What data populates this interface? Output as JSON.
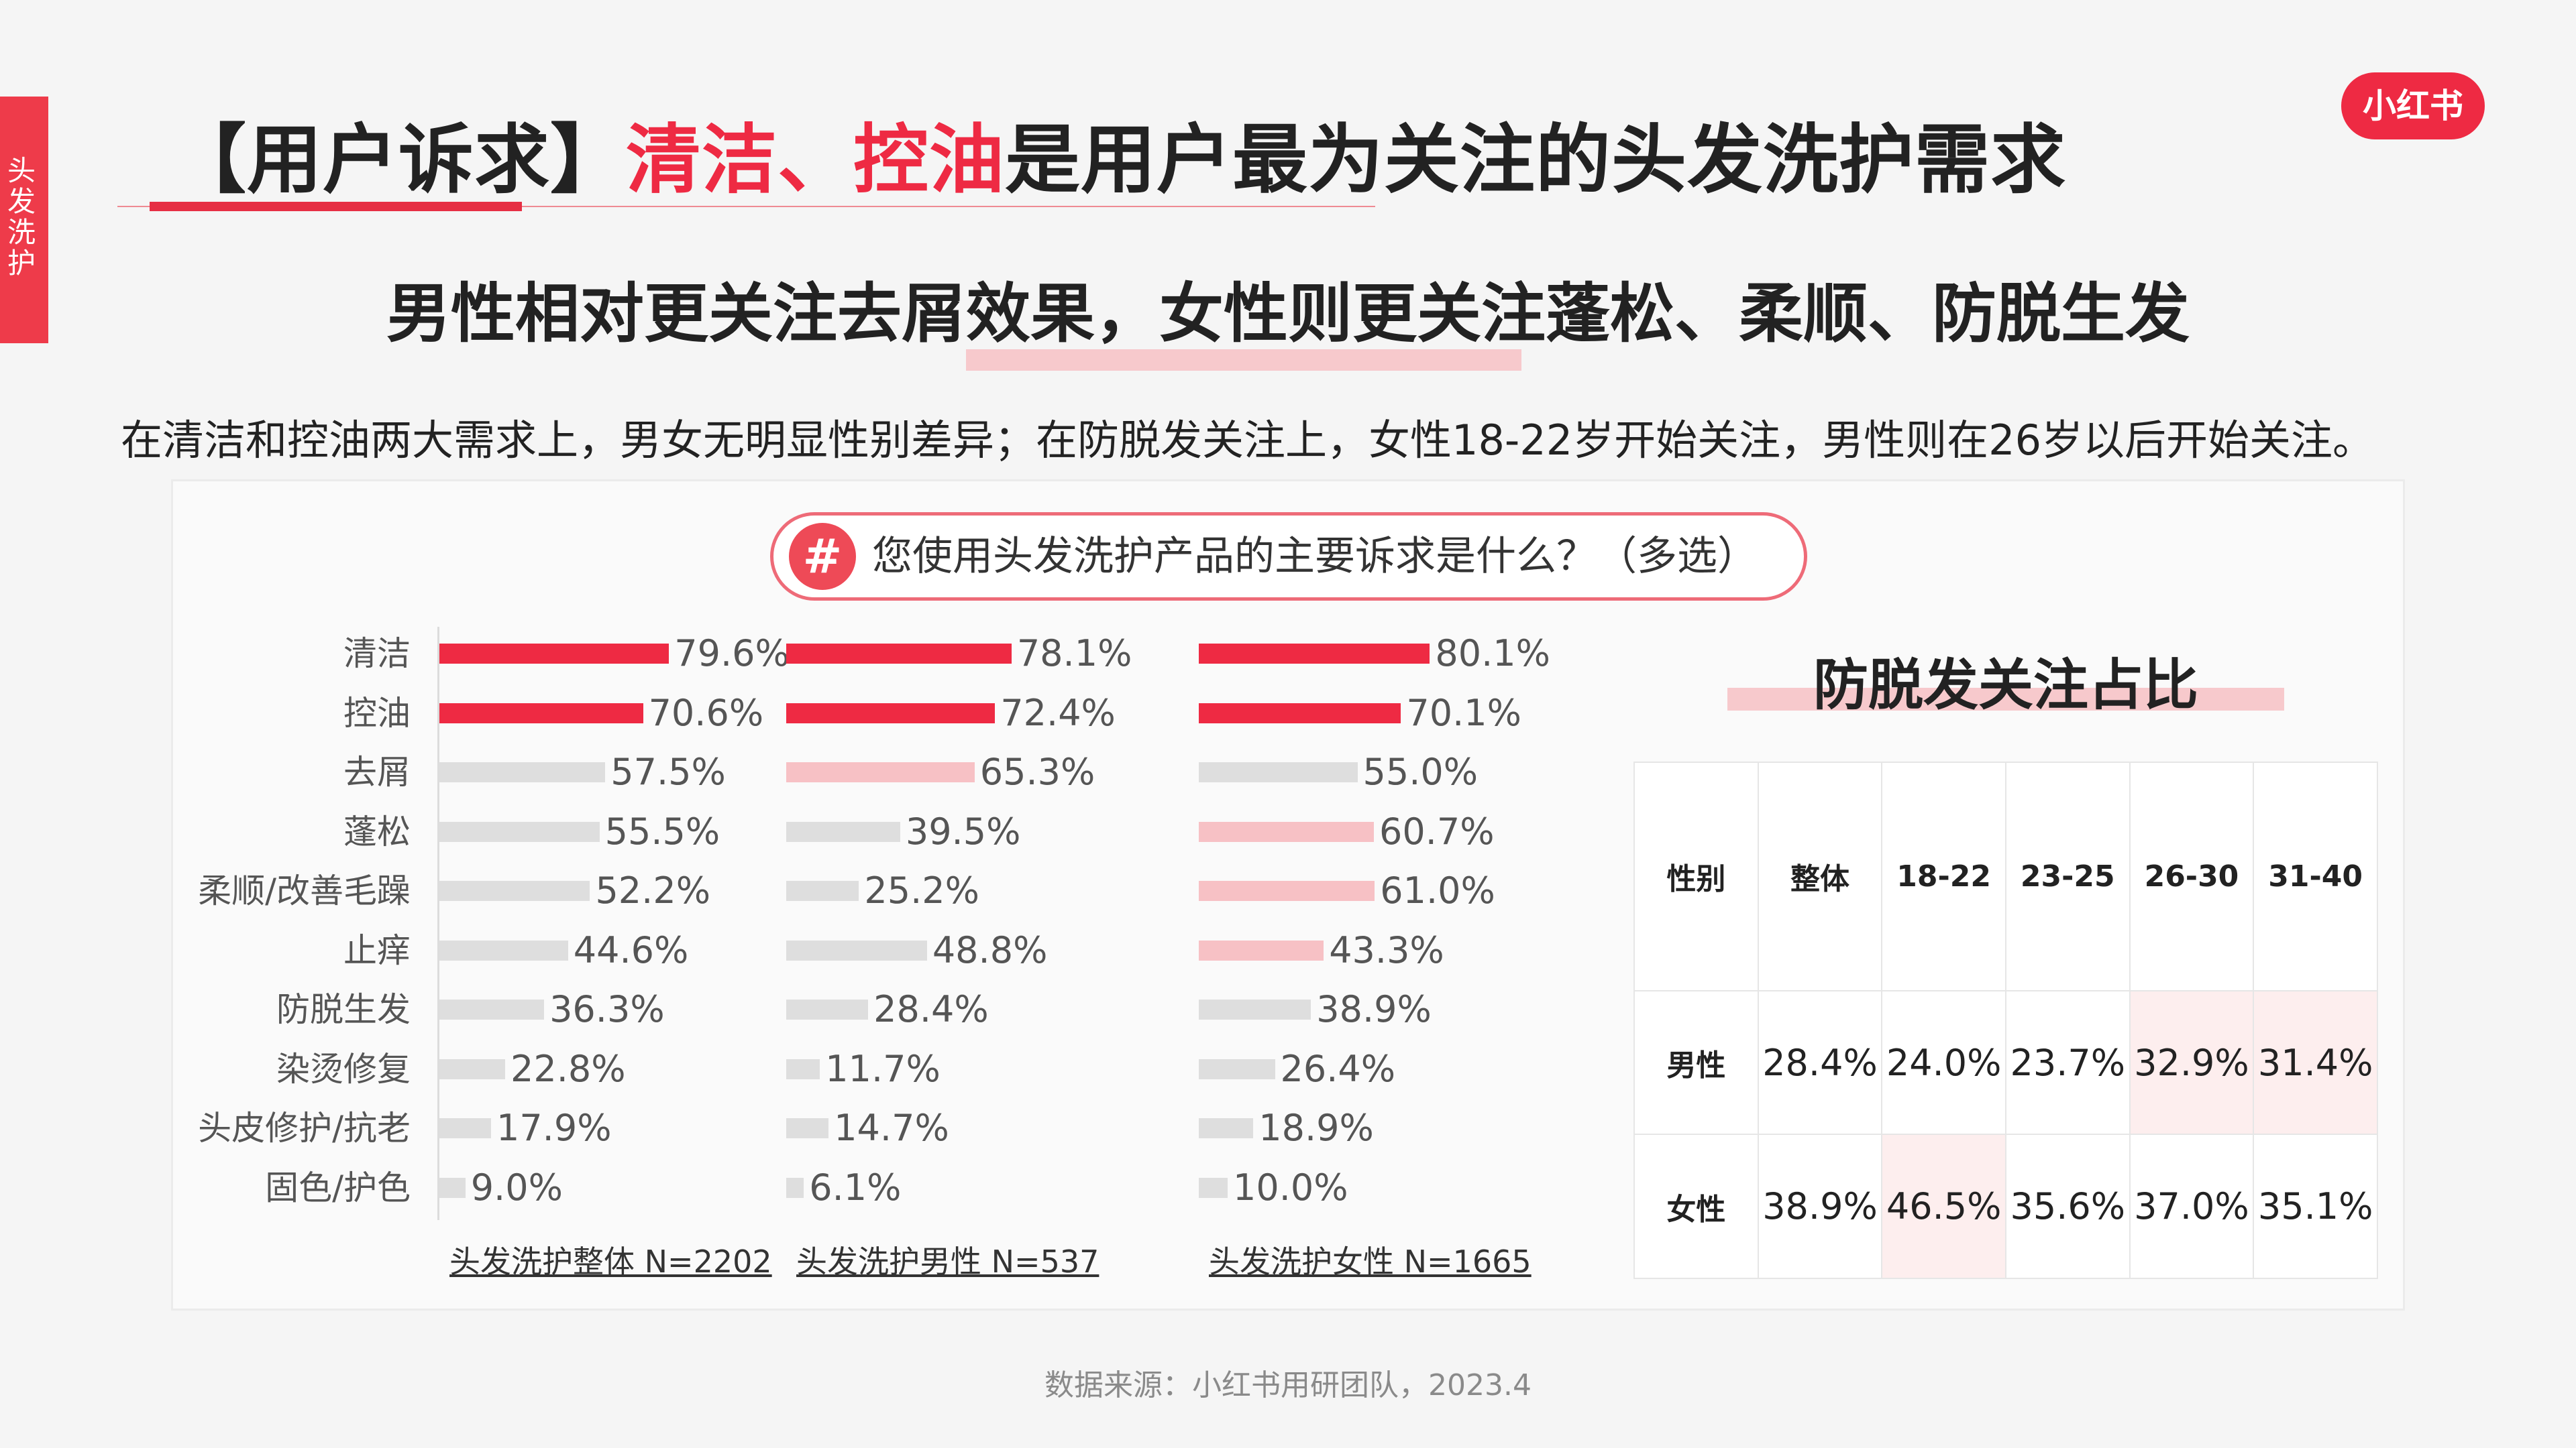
{
  "side_tab": {
    "label": "头发洗护"
  },
  "logo": {
    "text": "小红书"
  },
  "title": {
    "prefix": "【用户诉求】",
    "highlight": "清洁、控油",
    "suffix": "是用户最为关注的头发洗护需求"
  },
  "subtitle": "男性相对更关注去屑效果，女性则更关注蓬松、柔顺、防脱生发",
  "description": "在清洁和控油两大需求上，男女无明显性别差异；在防脱发关注上，女性18-22岁开始关注，男性则在26岁以后开始关注。",
  "question": {
    "icon": "hash-icon",
    "symbol": "#",
    "text": "您使用头发洗护产品的主要诉求是什么？（多选）"
  },
  "colors": {
    "accent": "#ee2a43",
    "bar_red": "#ee2a43",
    "bar_pink": "#f7c1c5",
    "bar_gray": "#dedede",
    "cell_highlight": "#fdeeee"
  },
  "chart_data": [
    {
      "type": "bar",
      "orientation": "horizontal",
      "categories": [
        "清洁",
        "控油",
        "去屑",
        "蓬松",
        "柔顺/改善毛躁",
        "止痒",
        "防脱生发",
        "染烫修复",
        "头皮修护/抗老",
        "固色/护色"
      ],
      "series": [
        {
          "name": "头发洗护整体 N=2202",
          "values": [
            79.6,
            70.6,
            57.5,
            55.5,
            52.2,
            44.6,
            36.3,
            22.8,
            17.9,
            9.0
          ],
          "labels": [
            "79.6%",
            "70.6%",
            "57.5%",
            "55.5%",
            "52.2%",
            "44.6%",
            "36.3%",
            "22.8%",
            "17.9%",
            "9.0%"
          ],
          "highlight": [
            "red",
            "red",
            "gray",
            "gray",
            "gray",
            "gray",
            "gray",
            "gray",
            "gray",
            "gray"
          ]
        },
        {
          "name": "头发洗护男性 N=537",
          "values": [
            78.1,
            72.4,
            65.3,
            39.5,
            25.2,
            48.8,
            28.4,
            11.7,
            14.7,
            6.1
          ],
          "labels": [
            "78.1%",
            "72.4%",
            "65.3%",
            "39.5%",
            "25.2%",
            "48.8%",
            "28.4%",
            "11.7%",
            "14.7%",
            "6.1%"
          ],
          "highlight": [
            "red",
            "red",
            "pink",
            "gray",
            "gray",
            "gray",
            "gray",
            "gray",
            "gray",
            "gray"
          ]
        },
        {
          "name": "头发洗护女性 N=1665",
          "values": [
            80.1,
            70.1,
            55.0,
            60.7,
            61.0,
            43.3,
            38.9,
            26.4,
            18.9,
            10.0
          ],
          "labels": [
            "80.1%",
            "70.1%",
            "55.0%",
            "60.7%",
            "61.0%",
            "43.3%",
            "38.9%",
            "26.4%",
            "18.9%",
            "10.0%"
          ],
          "highlight": [
            "red",
            "red",
            "gray",
            "pink",
            "pink",
            "pink",
            "gray",
            "gray",
            "gray",
            "gray"
          ]
        }
      ]
    },
    {
      "type": "table",
      "title": "防脱发关注占比",
      "columns": [
        "性别",
        "整体",
        "18-22",
        "23-25",
        "26-30",
        "31-40"
      ],
      "rows": [
        {
          "label": "男性",
          "values": [
            "28.4%",
            "24.0%",
            "23.7%",
            "32.9%",
            "31.4%"
          ],
          "highlight": [
            false,
            false,
            false,
            true,
            true
          ]
        },
        {
          "label": "女性",
          "values": [
            "38.9%",
            "46.5%",
            "35.6%",
            "37.0%",
            "35.1%"
          ],
          "highlight": [
            false,
            true,
            false,
            false,
            false
          ]
        }
      ]
    }
  ],
  "source": "数据来源：小红书用研团队，2023.4"
}
